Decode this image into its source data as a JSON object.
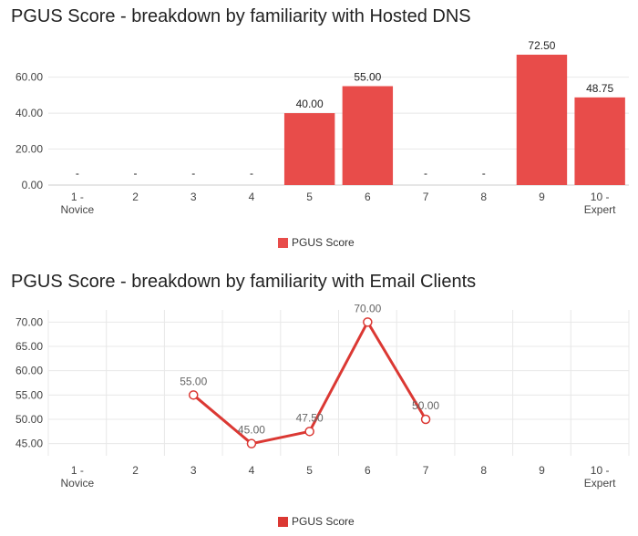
{
  "chart_data": [
    {
      "type": "bar",
      "title": "PGUS Score - breakdown by familiarity with Hosted DNS",
      "categories": [
        "1 - Novice",
        "2",
        "3",
        "4",
        "5",
        "6",
        "7",
        "8",
        "9",
        "10 - Expert"
      ],
      "category_lines": [
        [
          "1 -",
          "Novice"
        ],
        [
          "2"
        ],
        [
          "3"
        ],
        [
          "4"
        ],
        [
          "5"
        ],
        [
          "6"
        ],
        [
          "7"
        ],
        [
          "8"
        ],
        [
          "9"
        ],
        [
          "10 -",
          "Expert"
        ]
      ],
      "series": [
        {
          "name": "PGUS Score",
          "values": [
            null,
            null,
            null,
            null,
            40.0,
            55.0,
            null,
            null,
            72.5,
            48.75
          ],
          "labels": [
            "-",
            "-",
            "-",
            "-",
            "40.00",
            "55.00",
            "-",
            "-",
            "72.50",
            "48.75"
          ]
        }
      ],
      "ylim": [
        0,
        72.5
      ],
      "yticks": [
        0,
        20,
        40,
        60
      ],
      "ytick_labels": [
        "0.00",
        "20.00",
        "40.00",
        "60.00"
      ],
      "legend": "bottom",
      "color": "#e84c4a"
    },
    {
      "type": "line",
      "title": "PGUS Score - breakdown by familiarity with Email Clients",
      "categories": [
        "1 - Novice",
        "2",
        "3",
        "4",
        "5",
        "6",
        "7",
        "8",
        "9",
        "10 - Expert"
      ],
      "category_lines": [
        [
          "1 -",
          "Novice"
        ],
        [
          "2"
        ],
        [
          "3"
        ],
        [
          "4"
        ],
        [
          "5"
        ],
        [
          "6"
        ],
        [
          "7"
        ],
        [
          "8"
        ],
        [
          "9"
        ],
        [
          "10 -",
          "Expert"
        ]
      ],
      "series": [
        {
          "name": "PGUS Score",
          "values": [
            null,
            null,
            55.0,
            45.0,
            47.5,
            70.0,
            50.0,
            null,
            null,
            null
          ],
          "labels": [
            "",
            "",
            "55.00",
            "45.00",
            "47.50",
            "70.00",
            "50.00",
            "",
            "",
            ""
          ]
        }
      ],
      "ylim": [
        42.5,
        72.5
      ],
      "yticks": [
        45,
        50,
        55,
        60,
        65,
        70
      ],
      "ytick_labels": [
        "45.00",
        "50.00",
        "55.00",
        "60.00",
        "65.00",
        "70.00"
      ],
      "grid": true,
      "legend": "bottom",
      "color": "#db3833"
    }
  ]
}
